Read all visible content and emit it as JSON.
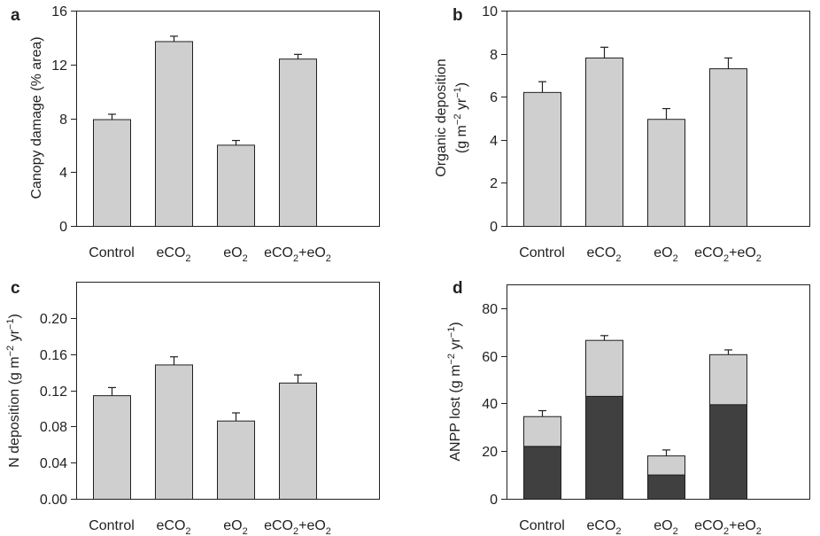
{
  "colors": {
    "bar_light": "#cfcfcf",
    "bar_dark": "#404040",
    "axis": "#231f20"
  },
  "chart_data": [
    {
      "type": "bar",
      "panel_label": "a",
      "categories": [
        "Control",
        "eCO2",
        "eO2",
        "eCO2+eO2"
      ],
      "values": [
        7.9,
        13.7,
        6.0,
        12.4
      ],
      "errors": [
        0.4,
        0.4,
        0.35,
        0.35
      ],
      "ylabel_main": "Canopy damage (% area)",
      "ylabel_units": "",
      "ylim": [
        0,
        16
      ],
      "yticks": [
        0,
        4,
        8,
        12,
        16
      ],
      "ytick_labels": [
        "0",
        "4",
        "8",
        "12",
        "16"
      ]
    },
    {
      "type": "bar",
      "panel_label": "b",
      "categories": [
        "Control",
        "eCO2",
        "eO2",
        "eCO2+eO2"
      ],
      "values": [
        6.2,
        7.8,
        4.95,
        7.3
      ],
      "errors": [
        0.5,
        0.5,
        0.5,
        0.5
      ],
      "ylabel_main": "Organic deposition",
      "ylabel_units": "(g m−2 yr−1)",
      "ylim": [
        0,
        10
      ],
      "yticks": [
        0,
        2,
        4,
        6,
        8,
        10
      ],
      "ytick_labels": [
        "0",
        "2",
        "4",
        "6",
        "8",
        "10"
      ]
    },
    {
      "type": "bar",
      "panel_label": "c",
      "categories": [
        "Control",
        "eCO2",
        "eO2",
        "eCO2+eO2"
      ],
      "values": [
        0.114,
        0.148,
        0.086,
        0.128
      ],
      "errors": [
        0.009,
        0.009,
        0.009,
        0.009
      ],
      "ylabel_main": "N deposition (g m−2 yr−1)",
      "ylabel_units": "",
      "ylim": [
        0,
        0.24
      ],
      "yticks": [
        0,
        0.04,
        0.08,
        0.12,
        0.16,
        0.2
      ],
      "ytick_labels": [
        "0.00",
        "0.04",
        "0.08",
        "0.12",
        "0.16",
        "0.20"
      ]
    },
    {
      "type": "bar",
      "stacked": true,
      "panel_label": "d",
      "categories": [
        "Control",
        "eCO2",
        "eO2",
        "eCO2+eO2"
      ],
      "series": [
        {
          "values": [
            22,
            43,
            10,
            39.5
          ]
        },
        {
          "values": [
            12.5,
            23.5,
            8,
            21
          ]
        }
      ],
      "errors": [
        2.5,
        2.0,
        2.5,
        2.0
      ],
      "ylabel_main": "ANPP lost (g m−2 yr−1)",
      "ylabel_units": "",
      "ylim": [
        0,
        90
      ],
      "yticks": [
        0,
        20,
        40,
        60,
        80
      ],
      "ytick_labels": [
        "0",
        "20",
        "40",
        "60",
        "80"
      ]
    }
  ]
}
